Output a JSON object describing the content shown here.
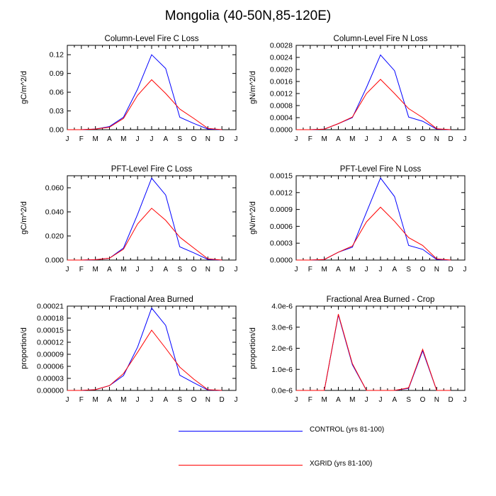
{
  "title": "Mongolia (40-50N,85-120E)",
  "months": [
    "J",
    "F",
    "M",
    "A",
    "M",
    "J",
    "J",
    "A",
    "S",
    "O",
    "N",
    "D",
    "J"
  ],
  "colors": {
    "control": "#0000ff",
    "xgrid": "#ff0000"
  },
  "legend": [
    {
      "key": "control",
      "label": "CONTROL (yrs 81-100)"
    },
    {
      "key": "xgrid",
      "label": "XGRID (yrs 81-100)"
    }
  ],
  "chart_data": [
    {
      "type": "line",
      "title": "Column-Level Fire C Loss",
      "ylabel": "gC/m^2/d",
      "ylim": [
        0,
        0.135
      ],
      "yticks": [
        "0.00",
        "0.03",
        "0.06",
        "0.09",
        "0.12"
      ],
      "ytick_values": [
        0,
        0.03,
        0.06,
        0.09,
        0.12
      ],
      "x": [
        "J",
        "F",
        "M",
        "A",
        "M",
        "J",
        "J",
        "A",
        "S",
        "O",
        "N",
        "D"
      ],
      "series": [
        {
          "name": "CONTROL (yrs 81-100)",
          "key": "control",
          "values": [
            0,
            0,
            0.001,
            0.005,
            0.02,
            0.065,
            0.12,
            0.098,
            0.02,
            0.01,
            0.001,
            0
          ]
        },
        {
          "name": "XGRID (yrs 81-100)",
          "key": "xgrid",
          "values": [
            0,
            0,
            0.001,
            0.004,
            0.018,
            0.055,
            0.08,
            0.058,
            0.033,
            0.018,
            0.002,
            0
          ]
        }
      ]
    },
    {
      "type": "line",
      "title": "Column-Level Fire N Loss",
      "ylabel": "gN/m^2/d",
      "ylim": [
        0,
        0.0028
      ],
      "yticks": [
        "0.0000",
        "0.0004",
        "0.0008",
        "0.0012",
        "0.0016",
        "0.0020",
        "0.0024",
        "0.0028"
      ],
      "ytick_values": [
        0,
        0.0004,
        0.0008,
        0.0012,
        0.0016,
        0.002,
        0.0024,
        0.0028
      ],
      "x": [
        "J",
        "F",
        "M",
        "A",
        "M",
        "J",
        "J",
        "A",
        "S",
        "O",
        "N",
        "D"
      ],
      "series": [
        {
          "name": "CONTROL (yrs 81-100)",
          "key": "control",
          "values": [
            0,
            0,
            2e-05,
            0.0002,
            0.0004,
            0.0014,
            0.00248,
            0.00196,
            0.00042,
            0.00028,
            2e-05,
            0
          ]
        },
        {
          "name": "XGRID (yrs 81-100)",
          "key": "xgrid",
          "values": [
            0,
            0,
            2e-05,
            0.0002,
            0.00042,
            0.0012,
            0.00167,
            0.0012,
            0.0007,
            0.0004,
            3e-05,
            0
          ]
        }
      ]
    },
    {
      "type": "line",
      "title": "PFT-Level Fire C Loss",
      "ylabel": "gC/m^2/d",
      "ylim": [
        0,
        0.07
      ],
      "yticks": [
        "0.000",
        "0.020",
        "0.040",
        "0.060"
      ],
      "ytick_values": [
        0,
        0.02,
        0.04,
        0.06
      ],
      "x": [
        "J",
        "F",
        "M",
        "A",
        "M",
        "J",
        "J",
        "A",
        "S",
        "O",
        "N",
        "D"
      ],
      "series": [
        {
          "name": "CONTROL (yrs 81-100)",
          "key": "control",
          "values": [
            0,
            0,
            0.0003,
            0.0015,
            0.01,
            0.038,
            0.068,
            0.054,
            0.011,
            0.006,
            0.0005,
            0
          ]
        },
        {
          "name": "XGRID (yrs 81-100)",
          "key": "xgrid",
          "values": [
            0,
            0,
            0.0003,
            0.0015,
            0.009,
            0.03,
            0.043,
            0.033,
            0.019,
            0.01,
            0.001,
            0
          ]
        }
      ]
    },
    {
      "type": "line",
      "title": "PFT-Level Fire N Loss",
      "ylabel": "gN/m^2/d",
      "ylim": [
        0,
        0.0015
      ],
      "yticks": [
        "0.0000",
        "0.0003",
        "0.0006",
        "0.0009",
        "0.0012",
        "0.0015"
      ],
      "ytick_values": [
        0,
        0.0003,
        0.0006,
        0.0009,
        0.0012,
        0.0015
      ],
      "x": [
        "J",
        "F",
        "M",
        "A",
        "M",
        "J",
        "J",
        "A",
        "S",
        "O",
        "N",
        "D"
      ],
      "series": [
        {
          "name": "CONTROL (yrs 81-100)",
          "key": "control",
          "values": [
            0,
            0,
            1e-05,
            0.00014,
            0.00023,
            0.00085,
            0.00146,
            0.00113,
            0.00026,
            0.00019,
            1e-05,
            0
          ]
        },
        {
          "name": "XGRID (yrs 81-100)",
          "key": "xgrid",
          "values": [
            0,
            0,
            1e-05,
            0.00014,
            0.00025,
            0.00068,
            0.00094,
            0.00069,
            0.0004,
            0.00026,
            2e-05,
            0
          ]
        }
      ]
    },
    {
      "type": "line",
      "title": "Fractional Area Burned",
      "ylabel": "proportion/d",
      "ylim": [
        0,
        0.00021
      ],
      "yticks": [
        "0.00000",
        "0.00003",
        "0.00006",
        "0.00009",
        "0.00012",
        "0.00015",
        "0.00018",
        "0.00021"
      ],
      "ytick_values": [
        0,
        3e-05,
        6e-05,
        9e-05,
        0.00012,
        0.00015,
        0.00018,
        0.00021
      ],
      "x": [
        "J",
        "F",
        "M",
        "A",
        "M",
        "J",
        "J",
        "A",
        "S",
        "O",
        "N",
        "D"
      ],
      "series": [
        {
          "name": "CONTROL (yrs 81-100)",
          "key": "control",
          "values": [
            0,
            0,
            2e-06,
            1.2e-05,
            3.7e-05,
            0.000108,
            0.000205,
            0.000162,
            3.8e-05,
            1.9e-05,
            1e-06,
            0
          ]
        },
        {
          "name": "XGRID (yrs 81-100)",
          "key": "xgrid",
          "values": [
            0,
            0,
            2e-06,
            1.2e-05,
            4.2e-05,
            9.5e-05,
            0.00015,
            0.000105,
            5.8e-05,
            2.8e-05,
            2e-06,
            0
          ]
        }
      ]
    },
    {
      "type": "line",
      "title": "Fractional Area Burned - Crop",
      "ylabel": "proportion/d",
      "ylim": [
        0,
        4e-06
      ],
      "yticks": [
        "0.0e-6",
        "1.0e-6",
        "2.0e-6",
        "3.0e-6",
        "4.0e-6"
      ],
      "ytick_values": [
        0,
        1e-06,
        2e-06,
        3e-06,
        4e-06
      ],
      "x": [
        "J",
        "F",
        "M",
        "A",
        "M",
        "J",
        "J",
        "A",
        "S",
        "O",
        "N",
        "D"
      ],
      "series": [
        {
          "name": "CONTROL (yrs 81-100)",
          "key": "control",
          "values": [
            0,
            0,
            0,
            3.58e-06,
            1.22e-06,
            0,
            0,
            0,
            1e-07,
            1.88e-06,
            0,
            0
          ]
        },
        {
          "name": "XGRID (yrs 81-100)",
          "key": "xgrid",
          "values": [
            0,
            0,
            0,
            3.62e-06,
            1.27e-06,
            0,
            0,
            0,
            1.2e-07,
            1.95e-06,
            0,
            0
          ]
        }
      ]
    }
  ]
}
